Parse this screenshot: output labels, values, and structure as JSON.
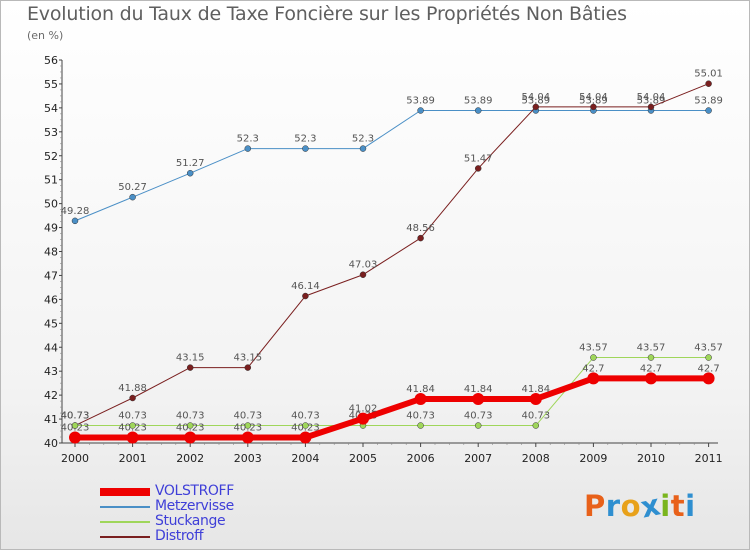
{
  "title": "Evolution du Taux de Taxe Foncière sur les Propriétés Non Bâties",
  "unit_label": "(en %)",
  "logo": {
    "text": "Proxiti",
    "colors": [
      "#e8611a",
      "#2f8fd0",
      "#e8a11a",
      "#2f8fd0",
      "#7ab51d",
      "#e8611a",
      "#2f8fd0"
    ]
  },
  "chart_data": {
    "type": "line",
    "x": [
      "2000",
      "2001",
      "2002",
      "2003",
      "2004",
      "2005",
      "2006",
      "2007",
      "2008",
      "2009",
      "2010",
      "2011"
    ],
    "ylim": [
      40,
      56
    ],
    "yticks": [
      "40",
      "41",
      "42",
      "43",
      "44",
      "45",
      "46",
      "47",
      "48",
      "49",
      "50",
      "51",
      "52",
      "53",
      "54",
      "55",
      "56"
    ],
    "grid": false,
    "legend_position": "bottom-left",
    "series": [
      {
        "name": "Metzervisse",
        "color": "#4a8fc6",
        "width": 1,
        "values": [
          49.28,
          50.27,
          51.27,
          52.3,
          52.3,
          52.3,
          53.89,
          53.89,
          53.89,
          53.89,
          53.89,
          53.89
        ],
        "labels": [
          "49.28",
          "50.27",
          "51.27",
          "52.3",
          "52.3",
          "52.3",
          "53.89",
          "53.89",
          "53.89",
          "53.89",
          "53.89",
          "53.89"
        ]
      },
      {
        "name": "Distroff",
        "color": "#7a1f1f",
        "width": 1,
        "values": [
          40.73,
          41.88,
          43.15,
          43.15,
          46.14,
          47.03,
          48.56,
          51.47,
          54.04,
          54.04,
          54.04,
          55.01
        ],
        "labels": [
          "40.73",
          "41.88",
          "43.15",
          "43.15",
          "46.14",
          "47.03",
          "48.56",
          "51.47",
          "54.04",
          "54.04",
          "54.04",
          "55.01"
        ]
      },
      {
        "name": "Stuckange",
        "color": "#9fd65a",
        "width": 1,
        "values": [
          40.73,
          40.73,
          40.73,
          40.73,
          40.73,
          40.73,
          40.73,
          40.73,
          40.73,
          43.57,
          43.57,
          43.57
        ],
        "labels": [
          "40.73",
          "40.73",
          "40.73",
          "40.73",
          "40.73",
          "40.73",
          "40.73",
          "40.73",
          "40.73",
          "43.57",
          "43.57",
          "43.57"
        ]
      },
      {
        "name": "VOLSTROFF",
        "color": "#ee0000",
        "width": 6,
        "values": [
          40.23,
          40.23,
          40.23,
          40.23,
          40.23,
          41.02,
          41.84,
          41.84,
          41.84,
          42.7,
          42.7,
          42.7
        ],
        "labels": [
          "40.23",
          "40.23",
          "40.23",
          "40.23",
          "40.23",
          "41.02",
          "41.84",
          "41.84",
          "41.84",
          "42.7",
          "42.7",
          "42.7"
        ]
      }
    ],
    "legend_order": [
      "VOLSTROFF",
      "Metzervisse",
      "Stuckange",
      "Distroff"
    ]
  }
}
